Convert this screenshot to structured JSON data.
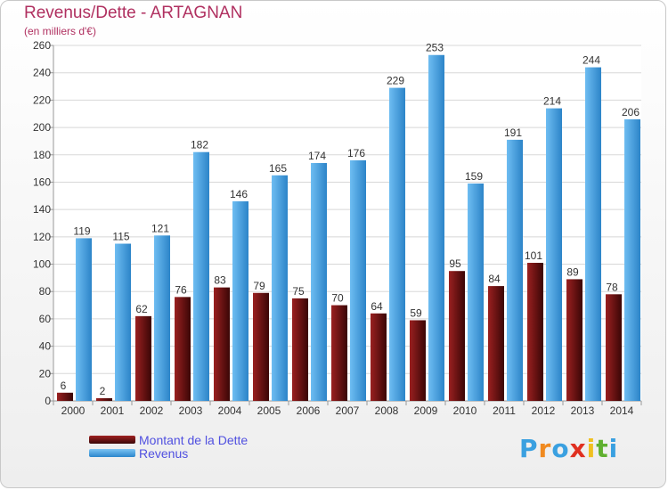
{
  "chart_data": {
    "type": "bar",
    "title": "Revenus/Dette - ARTAGNAN",
    "subtitle": "(en milliers d'€)",
    "categories": [
      "2000",
      "2001",
      "2002",
      "2003",
      "2004",
      "2005",
      "2006",
      "2007",
      "2008",
      "2009",
      "2010",
      "2011",
      "2012",
      "2013",
      "2014"
    ],
    "series": [
      {
        "name": "Montant de la Dette",
        "color": "#7a1515",
        "values": [
          6,
          2,
          62,
          76,
          83,
          79,
          75,
          70,
          64,
          59,
          95,
          84,
          101,
          89,
          78
        ]
      },
      {
        "name": "Revenus",
        "color": "#4ba7e8",
        "values": [
          119,
          115,
          121,
          182,
          146,
          165,
          174,
          176,
          229,
          253,
          159,
          191,
          214,
          244,
          206
        ]
      }
    ],
    "ylim": [
      0,
      260
    ],
    "yticks": [
      0,
      20,
      40,
      60,
      80,
      100,
      120,
      140,
      160,
      180,
      200,
      220,
      240,
      260
    ],
    "grid": true,
    "legend_position": "bottom-left"
  },
  "logo": {
    "letters": [
      "P",
      "r",
      "o",
      "x",
      "i",
      "t",
      "i"
    ]
  }
}
